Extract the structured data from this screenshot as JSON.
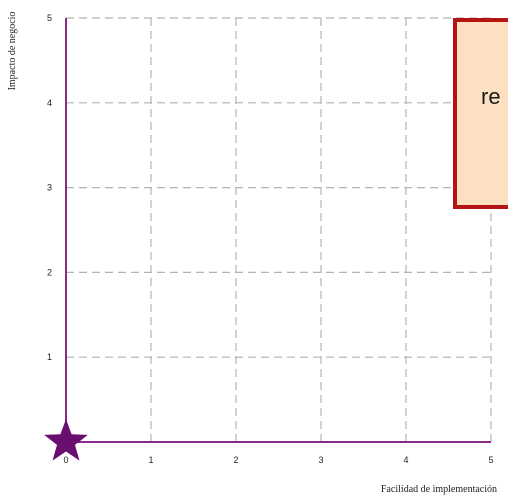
{
  "chart_data": {
    "type": "scatter",
    "title": "",
    "xlabel": "Facilidad de implementación",
    "ylabel": "Impacto de negocio",
    "xlim": [
      0,
      5
    ],
    "ylim": [
      0,
      5
    ],
    "x_ticks": [
      "0",
      "1",
      "2",
      "3",
      "4",
      "5"
    ],
    "y_ticks": [
      "1",
      "2",
      "3",
      "4",
      "5"
    ],
    "grid": true,
    "points": [
      {
        "x": 0,
        "y": 0,
        "marker": "star",
        "color": "#6a0f6f"
      }
    ],
    "annotation": {
      "text": "re",
      "anchor_x": 5,
      "anchor_y": 5,
      "fill": "#fde0c2",
      "border": "#b51414"
    },
    "axis_color": "#8b2a8b",
    "grid_color": "#b3b3b3"
  }
}
